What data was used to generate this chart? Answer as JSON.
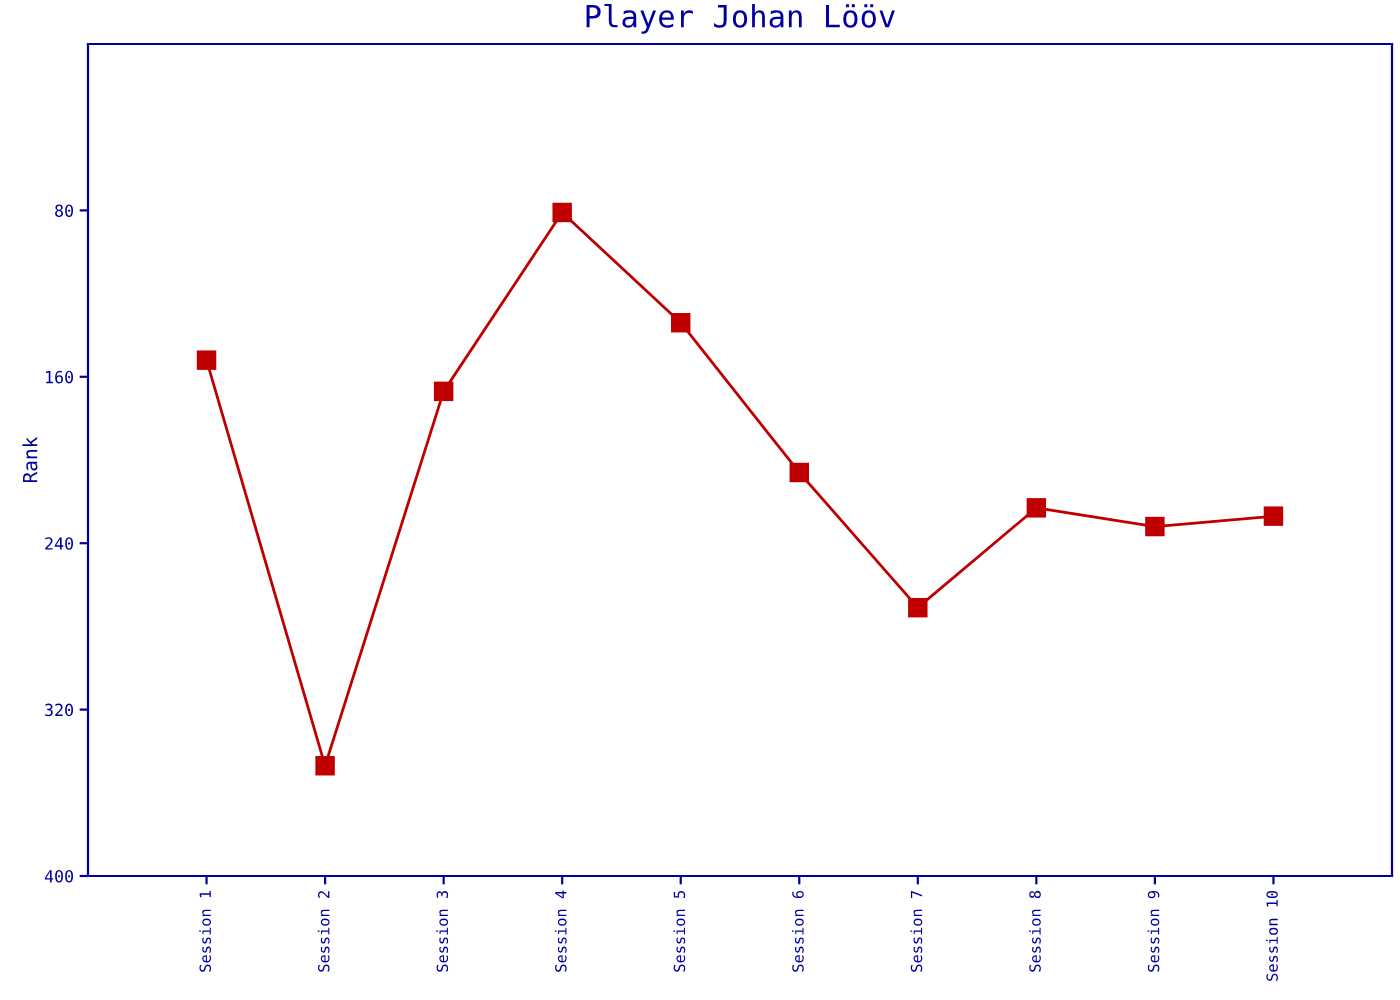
{
  "chart_data": {
    "type": "line",
    "title": "Player Johan Lööv",
    "ylabel": "Rank",
    "categories": [
      "Session 1",
      "Session 2",
      "Session 3",
      "Session 4",
      "Session 5",
      "Session 6",
      "Session 7",
      "Session 8",
      "Session 9",
      "Session 10"
    ],
    "series": [
      {
        "color": "#c00000",
        "values": [
          152,
          347,
          167,
          81,
          134,
          206,
          271,
          223,
          232,
          227
        ]
      }
    ],
    "ylim": [
      400,
      0
    ],
    "yticks": [
      80,
      160,
      240,
      320,
      400
    ],
    "grid": false,
    "legend": false,
    "marker": "square",
    "line_style": "solid"
  }
}
